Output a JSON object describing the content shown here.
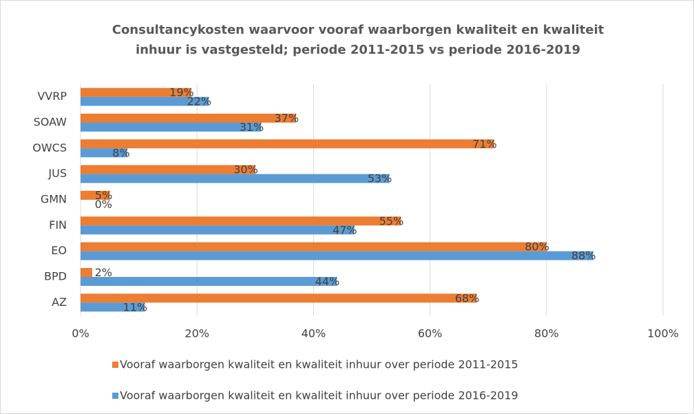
{
  "chart_data": {
    "type": "barh",
    "title": [
      "Consultancykosten waarvoor vooraf waarborgen kwaliteit en kwaliteit",
      "inhuur is vastgesteld; periode 2011-2015 vs periode 2016-2019"
    ],
    "categories": [
      "VVRP",
      "SOAW",
      "OWCS",
      "JUS",
      "GMN",
      "FIN",
      "EO",
      "BPD",
      "AZ"
    ],
    "series": [
      {
        "name": "Vooraf waarborgen kwaliteit en kwaliteit inhuur over periode 2011-2015",
        "color": "#ed7d31",
        "values": [
          19,
          37,
          71,
          30,
          5,
          55,
          80,
          2,
          68
        ],
        "value_labels": [
          "19%",
          "37%",
          "71%",
          "30%",
          "5%",
          "55%",
          "80%",
          "2%",
          "68%"
        ]
      },
      {
        "name": "Vooraf waarborgen kwaliteit en kwaliteit inhuur over periode 2016-2019",
        "color": "#5b9bd5",
        "values": [
          22,
          31,
          8,
          53,
          0,
          47,
          88,
          44,
          11
        ],
        "value_labels": [
          "22%",
          "31%",
          "8%",
          "53%",
          "0%",
          "47%",
          "88%",
          "44%",
          "11%"
        ]
      }
    ],
    "xlim": [
      0,
      100
    ],
    "xticks": [
      {
        "value": 0,
        "label": "0%"
      },
      {
        "value": 20,
        "label": "20%"
      },
      {
        "value": 40,
        "label": "40%"
      },
      {
        "value": 60,
        "label": "60%"
      },
      {
        "value": 80,
        "label": "80%"
      },
      {
        "value": 100,
        "label": "100%"
      }
    ],
    "grid": true,
    "legend": "bottom"
  }
}
